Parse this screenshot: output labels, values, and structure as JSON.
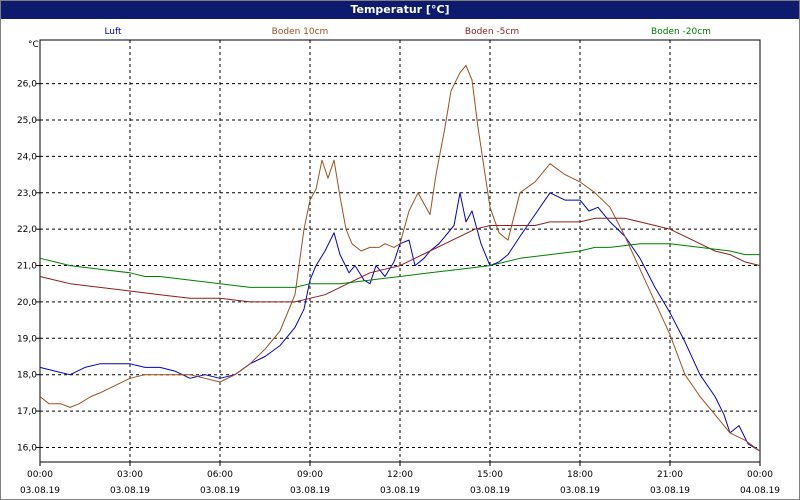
{
  "chart_data": {
    "type": "line",
    "title": "Temperatur [°C]",
    "ylabel": "°C",
    "ylim": [
      15.6,
      27.2
    ],
    "yticks": [
      "16,0",
      "17,0",
      "18,0",
      "19,0",
      "20,0",
      "21,0",
      "22,0",
      "23,0",
      "24,0",
      "25,0",
      "26,0"
    ],
    "xlim": [
      0,
      24
    ],
    "xticks": [
      {
        "time": "00:00",
        "date": "03.08.19"
      },
      {
        "time": "03:00",
        "date": "03.08.19"
      },
      {
        "time": "06:00",
        "date": "03.08.19"
      },
      {
        "time": "09:00",
        "date": "03.08.19"
      },
      {
        "time": "12:00",
        "date": "03.08.19"
      },
      {
        "time": "15:00",
        "date": "03.08.19"
      },
      {
        "time": "18:00",
        "date": "03.08.19"
      },
      {
        "time": "21:00",
        "date": "03.08.19"
      },
      {
        "time": "00:00",
        "date": "04.08.19"
      }
    ],
    "grid": true,
    "legend_position": "top",
    "series": [
      {
        "name": "Luft",
        "color": "#0000c8",
        "x": [
          0,
          0.5,
          1,
          1.5,
          2,
          2.5,
          3,
          3.5,
          4,
          4.5,
          5,
          5.5,
          6,
          6.5,
          7,
          7.5,
          8,
          8.5,
          8.8,
          9,
          9.2,
          9.5,
          9.8,
          10,
          10.3,
          10.5,
          10.8,
          11,
          11.2,
          11.5,
          11.8,
          12,
          12.3,
          12.5,
          12.8,
          13,
          13.3,
          13.5,
          13.8,
          14,
          14.2,
          14.4,
          14.7,
          15,
          15.3,
          15.6,
          16,
          16.5,
          17,
          17.5,
          18,
          18.3,
          18.6,
          19,
          19.5,
          20,
          20.5,
          21,
          21.5,
          22,
          22.5,
          22.8,
          23,
          23.3,
          23.6,
          24
        ],
        "y": [
          18.2,
          18.1,
          18.0,
          18.2,
          18.3,
          18.3,
          18.3,
          18.2,
          18.2,
          18.1,
          17.9,
          18.0,
          17.9,
          18.0,
          18.3,
          18.5,
          18.8,
          19.3,
          19.8,
          20.6,
          21.0,
          21.4,
          21.9,
          21.3,
          20.8,
          21.0,
          20.6,
          20.5,
          21.0,
          20.7,
          21.1,
          21.6,
          21.7,
          21.0,
          21.2,
          21.4,
          21.6,
          21.8,
          22.1,
          23.0,
          22.2,
          22.5,
          21.6,
          21.0,
          21.1,
          21.3,
          21.8,
          22.4,
          23.0,
          22.8,
          22.8,
          22.5,
          22.6,
          22.2,
          21.8,
          21.2,
          20.4,
          19.7,
          18.9,
          18.0,
          17.4,
          16.9,
          16.4,
          16.6,
          16.1,
          15.9
        ]
      },
      {
        "name": "Boden 10cm",
        "color": "#a0501e",
        "x": [
          0,
          0.3,
          0.7,
          1,
          1.3,
          1.7,
          2,
          2.5,
          3,
          3.5,
          4,
          4.5,
          5,
          5.5,
          6,
          6.5,
          7,
          7.5,
          8,
          8.5,
          8.8,
          9,
          9.2,
          9.4,
          9.6,
          9.8,
          10,
          10.2,
          10.4,
          10.7,
          11,
          11.3,
          11.5,
          11.8,
          12,
          12.3,
          12.6,
          12.8,
          13,
          13.2,
          13.5,
          13.7,
          14,
          14.2,
          14.4,
          14.6,
          15,
          15.3,
          15.6,
          16,
          16.5,
          17,
          17.5,
          18,
          18.5,
          19,
          19.5,
          20,
          20.5,
          21,
          21.5,
          22,
          22.5,
          23,
          23.5,
          24
        ],
        "y": [
          17.4,
          17.2,
          17.2,
          17.1,
          17.2,
          17.4,
          17.5,
          17.7,
          17.9,
          18.0,
          18.0,
          18.0,
          18.0,
          17.9,
          17.8,
          18.0,
          18.3,
          18.7,
          19.2,
          20.2,
          22.0,
          22.8,
          23.1,
          23.9,
          23.4,
          23.9,
          22.9,
          22.0,
          21.6,
          21.4,
          21.5,
          21.5,
          21.6,
          21.5,
          21.6,
          22.5,
          23.0,
          22.7,
          22.4,
          23.5,
          24.8,
          25.8,
          26.3,
          26.5,
          26.1,
          24.8,
          22.6,
          21.9,
          21.7,
          23.0,
          23.3,
          23.8,
          23.5,
          23.3,
          23.0,
          22.6,
          21.8,
          20.9,
          20.0,
          19.1,
          18.0,
          17.4,
          16.9,
          16.4,
          16.2,
          15.9
        ]
      },
      {
        "name": "Boden -5cm",
        "color": "#8c1e1e",
        "x": [
          0,
          0.5,
          1,
          2,
          3,
          4,
          5,
          6,
          7,
          8,
          8.5,
          9,
          9.5,
          10,
          10.5,
          11,
          11.5,
          12,
          12.5,
          13,
          13.5,
          14,
          14.5,
          15,
          15.5,
          16,
          16.5,
          17,
          17.5,
          18,
          18.5,
          19,
          19.5,
          20,
          20.5,
          21,
          21.5,
          22,
          22.5,
          23,
          23.5,
          24
        ],
        "y": [
          20.7,
          20.6,
          20.5,
          20.4,
          20.3,
          20.2,
          20.1,
          20.1,
          20.0,
          20.0,
          20.0,
          20.1,
          20.2,
          20.4,
          20.6,
          20.8,
          20.9,
          21.0,
          21.2,
          21.4,
          21.6,
          21.8,
          22.0,
          22.1,
          22.1,
          22.1,
          22.1,
          22.2,
          22.2,
          22.2,
          22.3,
          22.3,
          22.3,
          22.2,
          22.1,
          22.0,
          21.8,
          21.6,
          21.4,
          21.3,
          21.1,
          21.0
        ]
      },
      {
        "name": "Boden -20cm",
        "color": "#008000",
        "x": [
          0,
          0.5,
          1,
          2,
          3,
          3.5,
          4,
          5,
          6,
          7,
          8,
          8.5,
          9,
          10,
          11,
          12,
          13,
          14,
          15,
          16,
          17,
          18,
          18.5,
          19,
          20,
          21,
          22,
          23,
          23.5,
          24
        ],
        "y": [
          21.2,
          21.1,
          21.0,
          20.9,
          20.8,
          20.7,
          20.7,
          20.6,
          20.5,
          20.4,
          20.4,
          20.4,
          20.5,
          20.5,
          20.6,
          20.7,
          20.8,
          20.9,
          21.0,
          21.2,
          21.3,
          21.4,
          21.5,
          21.5,
          21.6,
          21.6,
          21.5,
          21.4,
          21.3,
          21.3
        ]
      }
    ]
  }
}
